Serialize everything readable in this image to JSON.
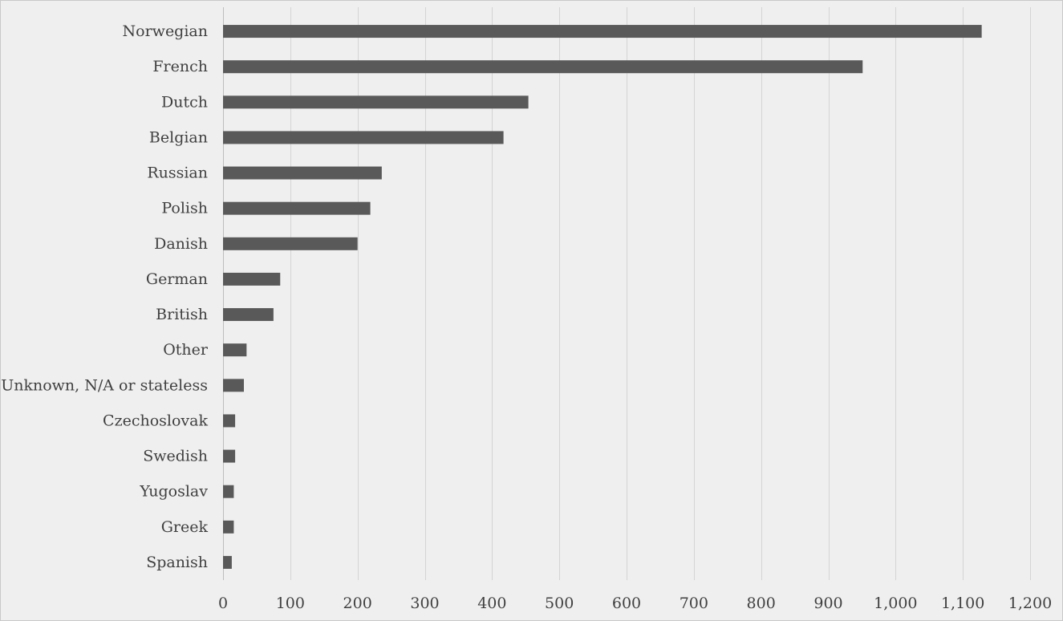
{
  "chart_data": {
    "type": "bar",
    "orientation": "horizontal",
    "title": "",
    "xlabel": "",
    "ylabel": "",
    "categories": [
      "Norwegian",
      "French",
      "Dutch",
      "Belgian",
      "Russian",
      "Polish",
      "Danish",
      "German",
      "British",
      "Other",
      "Unknown, N/A or stateless",
      "Czechoslovak",
      "Swedish",
      "Yugoslav",
      "Greek",
      "Spanish"
    ],
    "values": [
      1128,
      951,
      454,
      417,
      236,
      219,
      200,
      85,
      75,
      35,
      31,
      18,
      18,
      16,
      16,
      13
    ],
    "xlim": [
      0,
      1200
    ],
    "xticks": [
      0,
      100,
      200,
      300,
      400,
      500,
      600,
      700,
      800,
      900,
      1000,
      1100,
      1200
    ],
    "xtick_labels": [
      "0",
      "100",
      "200",
      "300",
      "400",
      "500",
      "600",
      "700",
      "800",
      "900",
      "1,000",
      "1,100",
      "1,200"
    ],
    "grid": "vertical",
    "legend": "none",
    "bar_color": "#595959",
    "background_color": "#efefef",
    "text_color": "#404040"
  }
}
